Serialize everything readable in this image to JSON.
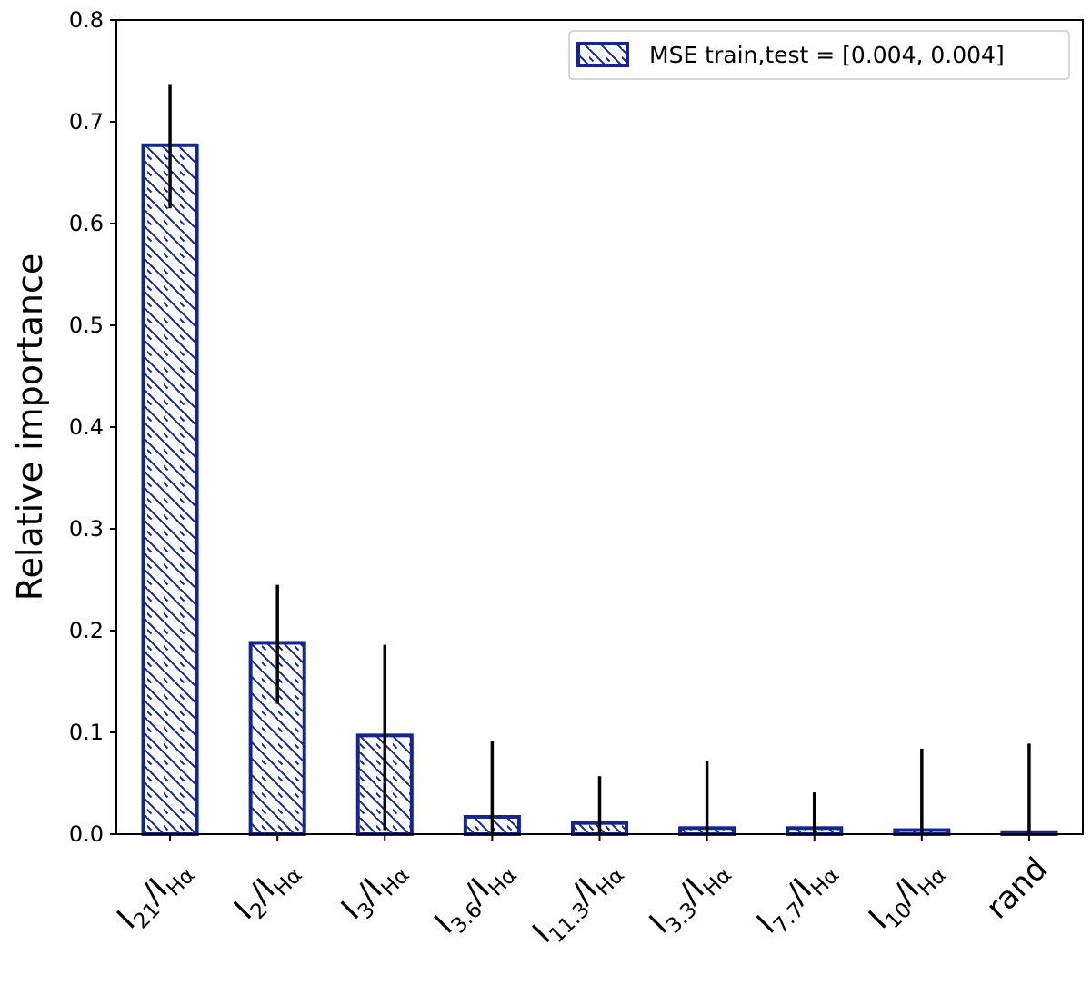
{
  "chart_data": {
    "type": "bar",
    "categories": [
      {
        "main": "I",
        "sub": "21",
        "slash": "/I",
        "sub2": "Hα"
      },
      {
        "main": "I",
        "sub": "2",
        "slash": "/I",
        "sub2": "Hα"
      },
      {
        "main": "I",
        "sub": "3",
        "slash": "/I",
        "sub2": "Hα"
      },
      {
        "main": "I",
        "sub": "3.6",
        "slash": "/I",
        "sub2": "Hα"
      },
      {
        "main": "I",
        "sub": "11.3",
        "slash": "/I",
        "sub2": "Hα"
      },
      {
        "main": "I",
        "sub": "3.3",
        "slash": "/I",
        "sub2": "Hα"
      },
      {
        "main": "I",
        "sub": "7.7",
        "slash": "/I",
        "sub2": "Hα"
      },
      {
        "main": "I",
        "sub": "10",
        "slash": "/I",
        "sub2": "Hα"
      },
      {
        "main": "rand",
        "sub": "",
        "slash": "",
        "sub2": ""
      }
    ],
    "values": [
      0.677,
      0.188,
      0.097,
      0.017,
      0.011,
      0.006,
      0.006,
      0.004,
      0.002
    ],
    "error_upper": [
      0.737,
      0.245,
      0.186,
      0.091,
      0.057,
      0.072,
      0.041,
      0.084,
      0.089
    ],
    "error_lower": [
      0.615,
      0.128,
      0.004,
      0.0,
      0.0,
      0.0,
      0.0,
      0.0,
      0.0
    ],
    "ylabel": "Relative importance",
    "ylim": [
      0,
      0.8
    ],
    "yticks": [
      "0.0",
      "0.1",
      "0.2",
      "0.3",
      "0.4",
      "0.5",
      "0.6",
      "0.7",
      "0.8"
    ],
    "legend": {
      "label": "MSE train,test = [0.004, 0.004]",
      "placement": "top-right"
    },
    "bar_color": "#14258f",
    "errorbar_color": "#000000",
    "hatch": "diagonal",
    "grid": false
  }
}
